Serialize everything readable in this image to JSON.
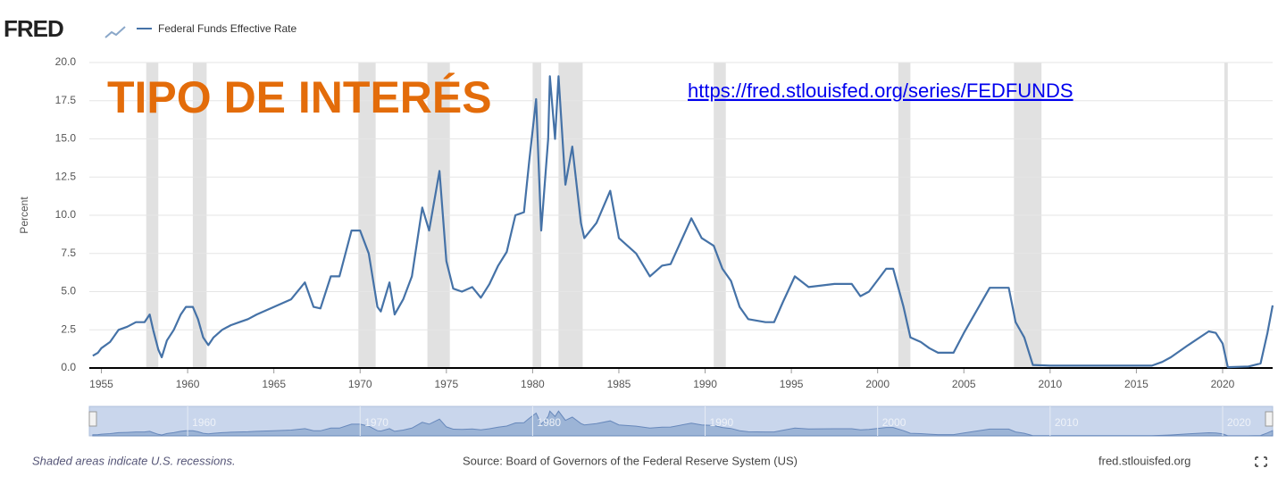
{
  "chart_data": {
    "type": "line",
    "brand": "FRED",
    "title": "TIPO DE INTERÉS",
    "link": "https://fred.stlouisfed.org/series/FEDFUNDS",
    "ylabel": "Percent",
    "note": "Shaded areas indicate U.S. recessions.",
    "source": "Source: Board of Governors of the Federal Reserve System (US)",
    "site": "fred.stlouisfed.org",
    "xlim": [
      1954.3,
      2022.9
    ],
    "xticks": [
      1955,
      1960,
      1965,
      1970,
      1975,
      1980,
      1985,
      1990,
      1995,
      2000,
      2005,
      2010,
      2015,
      2020
    ],
    "navigator_ticks": [
      1960,
      1970,
      1980,
      1990,
      2000,
      2010,
      2020
    ],
    "ylim": [
      0,
      20
    ],
    "yticks": [
      {
        "value": 0,
        "label": "0.0"
      },
      2.5,
      {
        "value": 5,
        "label": "5.0"
      },
      7.5,
      {
        "value": 10,
        "label": "10.0"
      },
      12.5,
      {
        "value": 15,
        "label": "15.0"
      },
      17.5,
      {
        "value": 20,
        "label": "20.0"
      }
    ],
    "grid": true,
    "recessions": [
      [
        1957.6,
        1958.3
      ],
      [
        1960.3,
        1961.1
      ],
      [
        1969.9,
        1970.9
      ],
      [
        1973.9,
        1975.2
      ],
      [
        1980.0,
        1980.5
      ],
      [
        1981.5,
        1982.9
      ],
      [
        1990.5,
        1991.2
      ],
      [
        2001.2,
        2001.9
      ],
      [
        2007.9,
        2009.5
      ],
      [
        2020.1,
        2020.3
      ]
    ],
    "recession_color": "#e1e1e1",
    "x": [
      1954.5,
      1954.8,
      1955.0,
      1955.5,
      1956.0,
      1956.5,
      1957.0,
      1957.5,
      1957.8,
      1958.0,
      1958.3,
      1958.5,
      1958.8,
      1959.2,
      1959.6,
      1959.9,
      1960.3,
      1960.6,
      1960.9,
      1961.2,
      1961.5,
      1962.0,
      1962.5,
      1963.0,
      1963.5,
      1964.0,
      1965.0,
      1966.0,
      1966.8,
      1967.3,
      1967.7,
      1968.3,
      1968.8,
      1969.5,
      1970.0,
      1970.5,
      1971.0,
      1971.2,
      1971.7,
      1972.0,
      1972.5,
      1973.0,
      1973.6,
      1974.0,
      1974.6,
      1975.0,
      1975.4,
      1975.9,
      1976.5,
      1977.0,
      1977.5,
      1978.0,
      1978.5,
      1979.0,
      1979.5,
      1979.8,
      1980.2,
      1980.5,
      1980.9,
      1981.0,
      1981.3,
      1981.5,
      1981.9,
      1982.3,
      1982.8,
      1983.0,
      1983.7,
      1984.5,
      1985.0,
      1986.0,
      1986.8,
      1987.5,
      1988.0,
      1989.2,
      1989.8,
      1990.5,
      1991.0,
      1991.5,
      1992.0,
      1992.5,
      1993.5,
      1994.0,
      1994.5,
      1995.2,
      1996.0,
      1997.5,
      1998.5,
      1999.0,
      1999.5,
      2000.5,
      2000.9,
      2001.5,
      2001.9,
      2002.5,
      2003.0,
      2003.5,
      2004.4,
      2005.0,
      2006.5,
      2007.6,
      2008.0,
      2008.5,
      2009.0,
      2010.0,
      2012.0,
      2015.9,
      2016.5,
      2017.0,
      2018.0,
      2019.2,
      2019.6,
      2020.0,
      2020.3,
      2021.5,
      2022.2,
      2022.6,
      2022.9
    ],
    "series": [
      {
        "name": "Federal Funds Effective Rate",
        "color": "#4572a7",
        "values": [
          0.8,
          1.0,
          1.3,
          1.7,
          2.5,
          2.7,
          3.0,
          3.0,
          3.5,
          2.5,
          1.2,
          0.7,
          1.8,
          2.5,
          3.5,
          4.0,
          4.0,
          3.2,
          2.0,
          1.5,
          2.0,
          2.5,
          2.8,
          3.0,
          3.2,
          3.5,
          4.0,
          4.5,
          5.6,
          4.0,
          3.9,
          6.0,
          6.0,
          9.0,
          9.0,
          7.5,
          4.0,
          3.7,
          5.6,
          3.5,
          4.5,
          6.0,
          10.5,
          9.0,
          12.9,
          7.0,
          5.2,
          5.0,
          5.3,
          4.6,
          5.5,
          6.7,
          7.6,
          10.0,
          10.2,
          13.5,
          17.6,
          9.0,
          15.0,
          19.1,
          15.0,
          19.1,
          12.0,
          14.5,
          9.5,
          8.5,
          9.5,
          11.6,
          8.5,
          7.5,
          6.0,
          6.7,
          6.8,
          9.8,
          8.5,
          8.0,
          6.5,
          5.7,
          4.0,
          3.2,
          3.0,
          3.0,
          4.3,
          6.0,
          5.3,
          5.5,
          5.5,
          4.7,
          5.0,
          6.5,
          6.5,
          4.0,
          2.0,
          1.7,
          1.3,
          1.0,
          1.0,
          2.3,
          5.25,
          5.25,
          3.0,
          2.0,
          0.2,
          0.15,
          0.15,
          0.15,
          0.4,
          0.7,
          1.5,
          2.4,
          2.3,
          1.6,
          0.05,
          0.1,
          0.3,
          2.3,
          4.1
        ]
      }
    ]
  }
}
